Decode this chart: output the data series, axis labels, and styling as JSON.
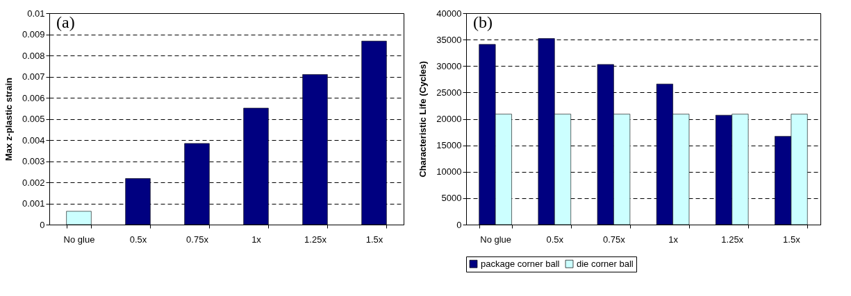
{
  "chart_data": [
    {
      "type": "bar",
      "categories": [
        "No glue",
        "0.5x",
        "0.75x",
        "1x",
        "1.25x",
        "1.5x"
      ],
      "values": [
        0.00063,
        0.00218,
        0.00384,
        0.00551,
        0.0071,
        0.00868
      ],
      "colors": [
        "#ccffff",
        "#000080",
        "#000080",
        "#000080",
        "#000080",
        "#000080"
      ],
      "ylabel": "Max z-plastic strain",
      "ylim": [
        0,
        0.01
      ],
      "yticks": [
        0,
        0.001,
        0.002,
        0.003,
        0.004,
        0.005,
        0.006,
        0.007,
        0.008,
        0.009,
        0.01
      ],
      "grid": "y",
      "annotations": [
        "(a)"
      ]
    },
    {
      "type": "bar",
      "categories": [
        "No glue",
        "0.5x",
        "0.75x",
        "1x",
        "1.25x",
        "1.5x"
      ],
      "series": [
        {
          "name": "package corner ball",
          "color": "#000080",
          "values": [
            34100,
            35200,
            30300,
            26600,
            20700,
            16700
          ]
        },
        {
          "name": "die corner ball",
          "color": "#ccffff",
          "values": [
            20900,
            20900,
            20900,
            20900,
            20900,
            20900
          ]
        }
      ],
      "ylabel": "Characteristic Life (Cycles)",
      "ylim": [
        0,
        40000
      ],
      "yticks": [
        0,
        5000,
        10000,
        15000,
        20000,
        25000,
        30000,
        35000,
        40000
      ],
      "grid": "y",
      "legend": "bottom",
      "annotations": [
        "(b)"
      ]
    }
  ]
}
